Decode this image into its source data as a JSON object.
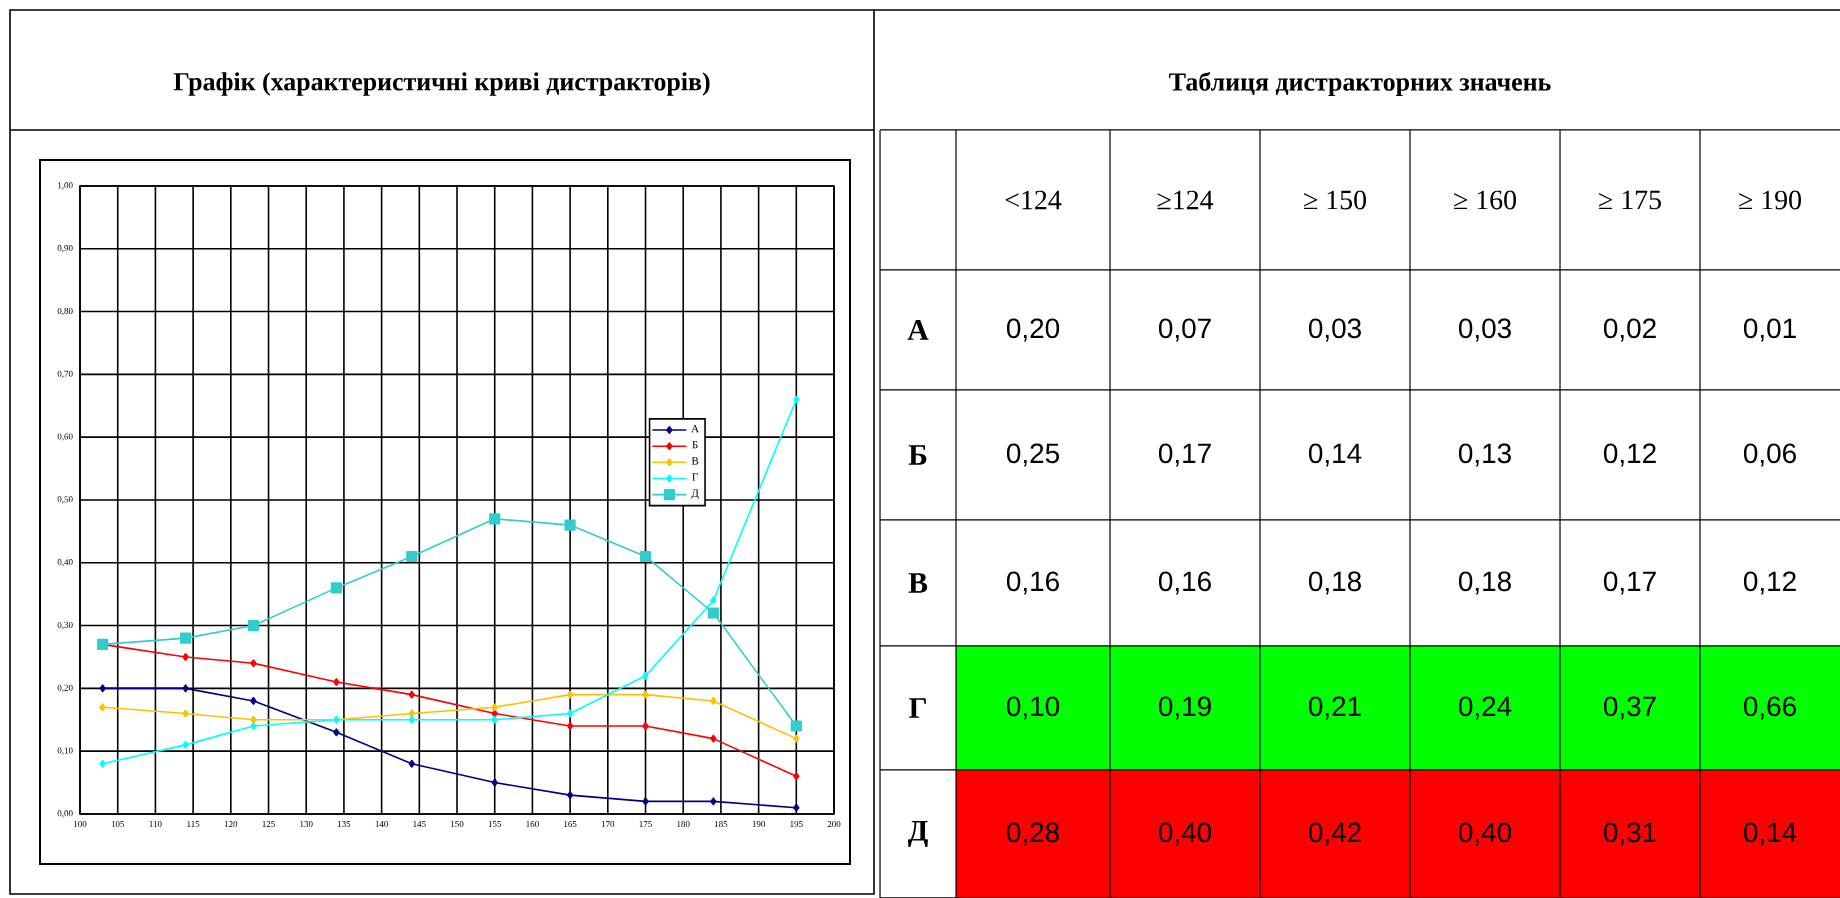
{
  "chart_data": [
    {
      "type": "line",
      "title": "Графік (характеристичні криві дистракторів)",
      "xlim": [
        100,
        200
      ],
      "xticks": [
        100,
        105,
        110,
        115,
        120,
        125,
        130,
        135,
        140,
        145,
        150,
        155,
        160,
        165,
        170,
        175,
        180,
        185,
        190,
        195,
        200
      ],
      "ylim": [
        0,
        1
      ],
      "yticks": [
        {
          "value": 0,
          "label": "0,00"
        },
        {
          "value": 0.1,
          "label": "0,10"
        },
        {
          "value": 0.2,
          "label": "0,20"
        },
        {
          "value": 0.3,
          "label": "0,30"
        },
        {
          "value": 0.4,
          "label": "0,40"
        },
        {
          "value": 0.5,
          "label": "0,50"
        },
        {
          "value": 0.6,
          "label": "0,60"
        },
        {
          "value": 0.7,
          "label": "0,70"
        },
        {
          "value": 0.8,
          "label": "0,80"
        },
        {
          "value": 0.9,
          "label": "0,90"
        },
        {
          "value": 1,
          "label": "1,00"
        }
      ],
      "grid": true,
      "legend": "right",
      "marker": "diamond",
      "line_style": "solid",
      "x": [
        103,
        114,
        123,
        134,
        144,
        155,
        165,
        175,
        184,
        195
      ],
      "series": [
        {
          "name": "А",
          "color": "#000080",
          "values": [
            0.2,
            0.2,
            0.18,
            0.13,
            0.08,
            0.05,
            0.03,
            0.02,
            0.02,
            0.01
          ]
        },
        {
          "name": "Б",
          "color": "#ff0000",
          "values": [
            0.27,
            0.25,
            0.24,
            0.21,
            0.19,
            0.16,
            0.14,
            0.14,
            0.12,
            0.06
          ]
        },
        {
          "name": "В",
          "color": "#ffc000",
          "values": [
            0.17,
            0.16,
            0.15,
            0.15,
            0.16,
            0.17,
            0.19,
            0.19,
            0.18,
            0.12
          ]
        },
        {
          "name": "Г",
          "color": "#00ffff",
          "values": [
            0.08,
            0.11,
            0.14,
            0.15,
            0.15,
            0.15,
            0.16,
            0.22,
            0.34,
            0.66
          ]
        },
        {
          "name": "Д",
          "color": "#33cccc",
          "marker": "square",
          "values": [
            0.27,
            0.28,
            0.3,
            0.36,
            0.41,
            0.47,
            0.46,
            0.41,
            0.32,
            0.14
          ]
        }
      ]
    },
    {
      "type": "other",
      "title": "Таблиця дистракторних значень",
      "categories": [
        "<124",
        "≥124",
        "≥ 150",
        "≥ 160",
        "≥ 175",
        "≥ 190"
      ],
      "series": [
        {
          "name": "А",
          "values": [
            0.2,
            0.07,
            0.03,
            0.03,
            0.02,
            0.01
          ],
          "value_labels": [
            "0,20",
            "0,07",
            "0,03",
            "0,03",
            "0,02",
            "0,01"
          ]
        },
        {
          "name": "Б",
          "values": [
            0.25,
            0.17,
            0.14,
            0.13,
            0.12,
            0.06
          ],
          "value_labels": [
            "0,25",
            "0,17",
            "0,14",
            "0,13",
            "0,12",
            "0,06"
          ]
        },
        {
          "name": "В",
          "values": [
            0.16,
            0.16,
            0.18,
            0.18,
            0.17,
            0.12
          ],
          "value_labels": [
            "0,16",
            "0,16",
            "0,18",
            "0,18",
            "0,17",
            "0,12"
          ]
        },
        {
          "name": "Г",
          "color": "#00ff00",
          "values": [
            0.1,
            0.19,
            0.21,
            0.24,
            0.37,
            0.66
          ],
          "value_labels": [
            "0,10",
            "0,19",
            "0,21",
            "0,24",
            "0,37",
            "0,66"
          ]
        },
        {
          "name": "Д",
          "color": "#ff0000",
          "values": [
            0.28,
            0.4,
            0.42,
            0.4,
            0.31,
            0.14
          ],
          "value_labels": [
            "0,28",
            "0,40",
            "0,42",
            "0,40",
            "0,31",
            "0,14"
          ]
        }
      ]
    }
  ]
}
